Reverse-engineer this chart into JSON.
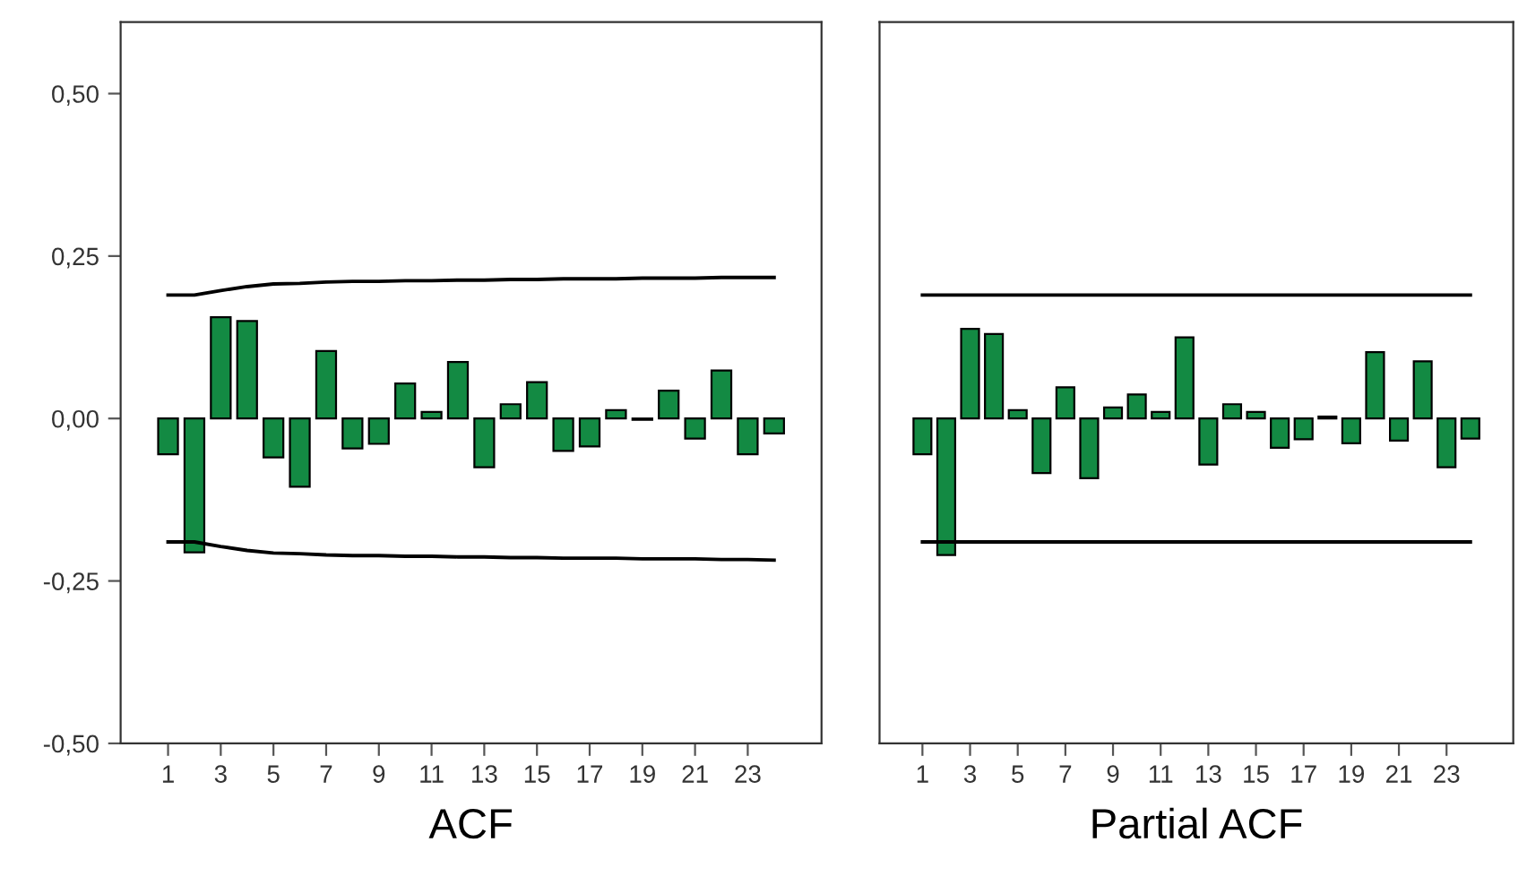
{
  "chart_data": [
    {
      "type": "bar",
      "xlabel": "ACF",
      "x": [
        1,
        2,
        3,
        4,
        5,
        6,
        7,
        8,
        9,
        10,
        11,
        12,
        13,
        14,
        15,
        16,
        17,
        18,
        19,
        20,
        21,
        22,
        23,
        24
      ],
      "series": [
        {
          "color": "#138a43",
          "values": [
            -0.055,
            -0.206,
            0.156,
            0.15,
            -0.06,
            -0.105,
            0.104,
            -0.046,
            -0.039,
            0.054,
            0.01,
            0.087,
            -0.075,
            0.022,
            0.056,
            -0.05,
            -0.043,
            0.013,
            -0.002,
            0.043,
            -0.031,
            0.074,
            -0.055,
            -0.023
          ]
        },
        {
          "type": "line",
          "color": "#000000",
          "values": [
            0.19,
            0.19,
            0.197,
            0.203,
            0.207,
            0.208,
            0.21,
            0.211,
            0.211,
            0.212,
            0.212,
            0.213,
            0.213,
            0.214,
            0.214,
            0.215,
            0.215,
            0.215,
            0.216,
            0.216,
            0.216,
            0.217,
            0.217,
            0.217
          ]
        },
        {
          "type": "line",
          "color": "#000000",
          "values": [
            -0.19,
            -0.19,
            -0.197,
            -0.203,
            -0.207,
            -0.208,
            -0.21,
            -0.211,
            -0.211,
            -0.212,
            -0.212,
            -0.213,
            -0.213,
            -0.214,
            -0.214,
            -0.215,
            -0.215,
            -0.215,
            -0.216,
            -0.216,
            -0.216,
            -0.217,
            -0.217,
            -0.218
          ]
        }
      ],
      "xlim": [
        -0.8,
        25.8
      ],
      "xticks": [
        1,
        3,
        5,
        7,
        9,
        11,
        13,
        15,
        17,
        19,
        21,
        23
      ],
      "ylim": [
        -0.5,
        0.61
      ],
      "yticks": [
        {
          "value": -0.5,
          "label": "-0,50"
        },
        {
          "value": -0.25,
          "label": "-0,25"
        },
        {
          "value": 0,
          "label": "0,00"
        },
        {
          "value": 0.25,
          "label": "0,25"
        },
        {
          "value": 0.5,
          "label": "0,50"
        }
      ],
      "grid": false,
      "legend": false
    },
    {
      "type": "bar",
      "xlabel": "Partial ACF",
      "x": [
        1,
        2,
        3,
        4,
        5,
        6,
        7,
        8,
        9,
        10,
        11,
        12,
        13,
        14,
        15,
        16,
        17,
        18,
        19,
        20,
        21,
        22,
        23,
        24
      ],
      "series": [
        {
          "color": "#138a43",
          "values": [
            -0.055,
            -0.21,
            0.138,
            0.13,
            0.013,
            -0.084,
            0.048,
            -0.092,
            0.017,
            0.037,
            0.01,
            0.125,
            -0.071,
            0.022,
            0.01,
            -0.045,
            -0.032,
            0.003,
            -0.038,
            0.102,
            -0.034,
            0.088,
            -0.075,
            -0.031
          ]
        }
      ],
      "ref_lines": [
        {
          "axis": "y",
          "value": 0.19,
          "color": "#000000"
        },
        {
          "axis": "y",
          "value": -0.19,
          "color": "#000000"
        }
      ],
      "xlim": [
        -0.8,
        25.8
      ],
      "xticks": [
        1,
        3,
        5,
        7,
        9,
        11,
        13,
        15,
        17,
        19,
        21,
        23
      ],
      "ylim": [
        -0.5,
        0.61
      ],
      "tick_labels": "x",
      "grid": false,
      "legend": false
    }
  ]
}
